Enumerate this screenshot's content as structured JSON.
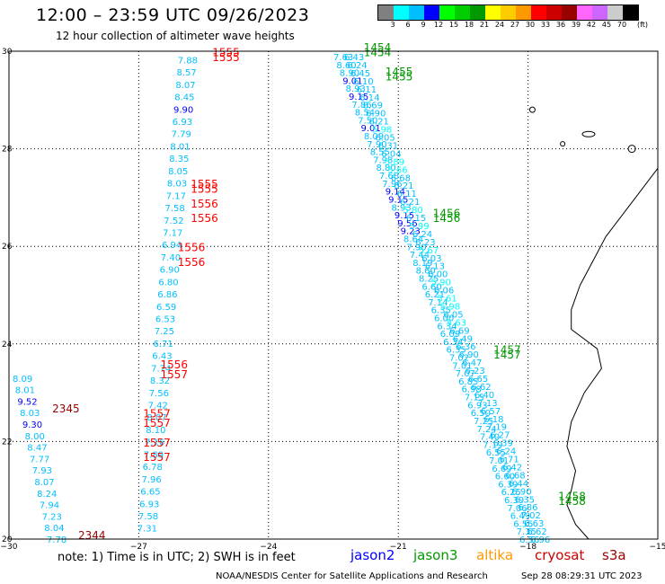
{
  "header": {
    "title": "12:00 – 23:59 UTC 09/26/2023",
    "subtitle": "12 hour collection of altimeter wave heights"
  },
  "colorbar": {
    "colors": [
      "#808080",
      "#00ffff",
      "#00bfff",
      "#0000ff",
      "#00ff00",
      "#00cc00",
      "#009900",
      "#ffff00",
      "#ffcc00",
      "#ff9900",
      "#ff0000",
      "#cc0000",
      "#990000",
      "#ff66ff",
      "#cc66ff",
      "#cccccc",
      "#000000"
    ],
    "labels": [
      "3",
      "6",
      "9",
      "12",
      "15",
      "18",
      "21",
      "24",
      "27",
      "30",
      "33",
      "36",
      "39",
      "42",
      "45",
      "70"
    ],
    "unit": "(ft)"
  },
  "map": {
    "lon_ticks": [
      -30,
      -27,
      -24,
      -21,
      -18,
      -15
    ],
    "lon_tick_labels": [
      "−30",
      "−27",
      "−24",
      "−21",
      "−18",
      "−15"
    ],
    "lat_ticks": [
      20,
      22,
      24,
      26,
      28,
      30
    ],
    "lat_tick_labels": [
      "20",
      "22",
      "24",
      "26",
      "28",
      "30"
    ],
    "land_color": "#000000"
  },
  "observations": {
    "descending_track_values": [
      "7.63",
      "8.60",
      "8.90",
      "9.01",
      "8.93",
      "9.15",
      "7.86",
      "8.54",
      "7.50",
      "9.01",
      "8.09",
      "7.90",
      "8.55",
      "7.98",
      "8.80",
      "7.68",
      "7.96",
      "9.14",
      "9.15",
      "8.93",
      "9.15",
      "9.56",
      "9.23",
      "8.64",
      "7.90",
      "7.44",
      "8.19",
      "8.60",
      "8.25",
      "6.60",
      "6.21",
      "7.14",
      "6.35",
      "6.00",
      "6.34",
      "6.09",
      "6.34",
      "6.35",
      "7.02",
      "7.01",
      "7.07",
      "6.85",
      "6.98",
      "7.15",
      "6.93",
      "6.50",
      "7.25",
      "7.24",
      "7.40",
      "7.19",
      "6.55",
      "7.01",
      "6.69",
      "6.60",
      "6.39",
      "6.25",
      "6.39",
      "7.06",
      "6.49",
      "6.55",
      "7.35",
      "6.56",
      "6.43",
      "6.24",
      "6.45",
      "6.10",
      "6.11",
      "6.14",
      "6.69",
      "6.90",
      "6.21",
      "5.98",
      "6.05",
      "6.31",
      "6.04",
      "5.89",
      "5.66",
      "6.68",
      "6.21",
      "6.11",
      "6.21",
      "5.80",
      "6.15",
      "5.99",
      "6.24",
      "6.23",
      "5.67",
      "6.03",
      "6.13",
      "6.00",
      "5.90",
      "6.06",
      "5.61",
      "5.98",
      "6.05",
      "5.63",
      "6.69",
      "6.49",
      "6.36",
      "6.90",
      "6.47",
      "6.23",
      "6.65",
      "6.62",
      "6.40",
      "7.13",
      "6.57",
      "6.18",
      "7.19",
      "6.27",
      "6.39",
      "6.24",
      "6.71",
      "6.42",
      "6.68",
      "6.44",
      "6.90",
      "6.35",
      "6.86",
      "7.02",
      "6.63",
      "6.62",
      "6.96"
    ],
    "column_27": [
      "7.88",
      "8.57",
      "8.07",
      "8.45",
      "9.90",
      "6.93",
      "7.79",
      "8.01",
      "8.35",
      "8.05",
      "8.03",
      "7.17",
      "7.58",
      "7.52",
      "7.17",
      "6.94",
      "7.40",
      "6.90",
      "6.80",
      "6.86",
      "6.59",
      "6.53",
      "7.25",
      "6.71",
      "6.43",
      "7.74",
      "8.32",
      "7.56",
      "7.42",
      "8.07",
      "8.10",
      "7.16",
      "7.89",
      "6.78",
      "7.96",
      "6.65",
      "6.93",
      "7.58",
      "7.31"
    ],
    "column_30": [
      "8.09",
      "8.01",
      "9.52",
      "8.03",
      "9.30",
      "8.00",
      "8.47",
      "7.77",
      "7.93",
      "8.07",
      "8.24",
      "7.94",
      "7.23",
      "8.04",
      "7.78"
    ],
    "pass_times_s3a": [
      "1555",
      "1555",
      "1555",
      "1555",
      "1556",
      "1556",
      "1556",
      "1556",
      "1556",
      "1557",
      "1557",
      "1557",
      "1557",
      "1557"
    ],
    "pass_times_cryosat": [
      "2345",
      "2344"
    ],
    "pass_times_jason3": [
      "1454",
      "1454",
      "1455",
      "1455",
      "1456",
      "1456",
      "1457",
      "1457",
      "1458",
      "1458"
    ]
  },
  "legend": {
    "note": "note: 1) Time is in UTC; 2) SWH is in feet",
    "satellites": [
      {
        "name": "jason2",
        "color": "#0000ff"
      },
      {
        "name": "jason3",
        "color": "#009900"
      },
      {
        "name": "altika",
        "color": "#ff9900"
      },
      {
        "name": "cryosat",
        "color": "#cc0000"
      },
      {
        "name": "s3a",
        "color": "#990000"
      }
    ]
  },
  "footer": {
    "credit": "NOAA/NESDIS Center for Satellite Applications and Research",
    "timestamp": "Sep 28 08:29:31 UTC 2023"
  }
}
